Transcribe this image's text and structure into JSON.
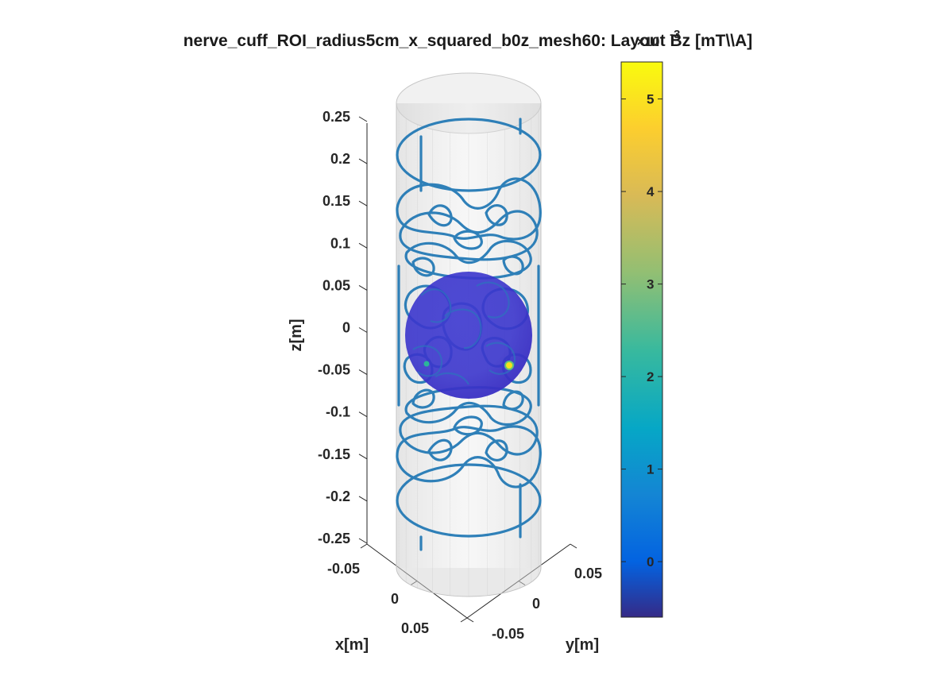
{
  "chart_data": {
    "type": "3d-surface",
    "title": "nerve_cuff_ROI_radius5cm_x_squared_b0z_mesh60: Layout Bz [mT\\\\A]",
    "xlabel": "x[m]",
    "ylabel": "y[m]",
    "zlabel": "z[m]",
    "x_ticks": [
      "-0.05",
      "0",
      "0.05"
    ],
    "y_ticks": [
      "-0.05",
      "0",
      "0.05"
    ],
    "z_ticks": [
      "0.25",
      "0.2",
      "0.15",
      "0.1",
      "0.05",
      "0",
      "-0.05",
      "-0.1",
      "-0.15",
      "-0.2",
      "-0.25"
    ],
    "zlim": [
      -0.25,
      0.25
    ],
    "cylinder_radius": 0.05,
    "roi_sphere_radius": 0.05,
    "colorbar": {
      "ticks": [
        "5",
        "4",
        "3",
        "2",
        "1",
        "0"
      ],
      "tick_values": [
        5,
        4,
        3,
        2,
        1,
        0
      ],
      "exponent_label": "×10",
      "exponent": "-3",
      "range": [
        -0.6,
        5.4
      ],
      "colormap": "parula"
    },
    "colors": {
      "wire": "#1f77b4",
      "cylinder": "#d9d9d9",
      "sphere": "#3a36c8",
      "hotspot": "#f5e21a"
    },
    "grid": false
  }
}
